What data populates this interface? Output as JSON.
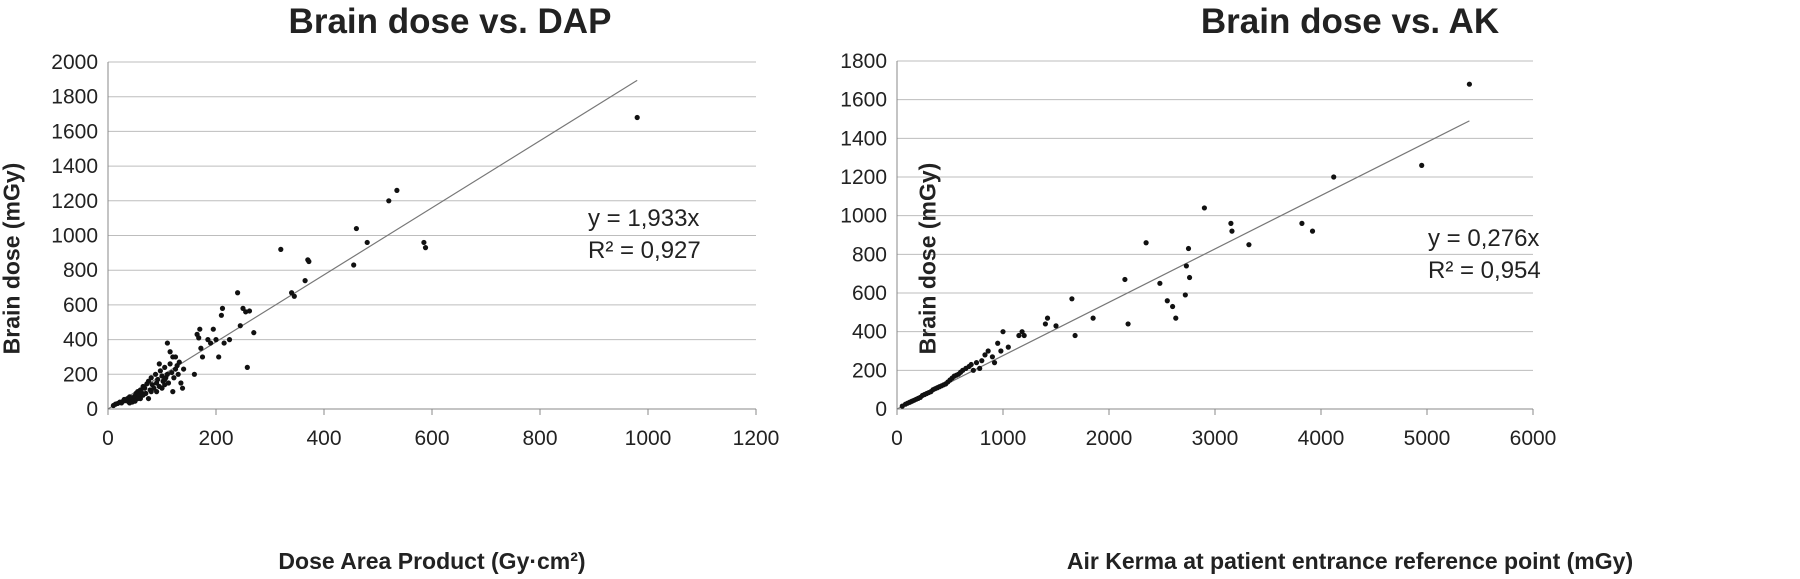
{
  "chart_data": [
    {
      "type": "scatter",
      "title": "Brain dose vs. DAP",
      "xlabel": "Dose Area Product (Gy·cm²)",
      "ylabel": "Brain dose (mGy)",
      "xlim": [
        0,
        1200
      ],
      "ylim": [
        0,
        2000
      ],
      "xticks": [
        "0",
        "200",
        "400",
        "600",
        "800",
        "1000",
        "1200"
      ],
      "yticks": [
        "0",
        "200",
        "400",
        "600",
        "800",
        "1000",
        "1200",
        "1400",
        "1600",
        "1800",
        "2000"
      ],
      "grid": "horizontal",
      "trendline": {
        "slope": 1.933,
        "x_end": 980
      },
      "equation": "y = 1,933x",
      "r_squared": "R² = 0,927",
      "points": [
        [
          10,
          20
        ],
        [
          14,
          28
        ],
        [
          18,
          32
        ],
        [
          22,
          40
        ],
        [
          25,
          35
        ],
        [
          28,
          45
        ],
        [
          30,
          55
        ],
        [
          33,
          48
        ],
        [
          36,
          60
        ],
        [
          38,
          42
        ],
        [
          40,
          70
        ],
        [
          42,
          55
        ],
        [
          45,
          65
        ],
        [
          48,
          50
        ],
        [
          50,
          75
        ],
        [
          52,
          90
        ],
        [
          55,
          100
        ],
        [
          58,
          80
        ],
        [
          60,
          110
        ],
        [
          62,
          95
        ],
        [
          65,
          130
        ],
        [
          68,
          120
        ],
        [
          70,
          90
        ],
        [
          72,
          145
        ],
        [
          75,
          160
        ],
        [
          78,
          110
        ],
        [
          80,
          180
        ],
        [
          82,
          140
        ],
        [
          85,
          120
        ],
        [
          88,
          200
        ],
        [
          90,
          150
        ],
        [
          92,
          170
        ],
        [
          95,
          130
        ],
        [
          97,
          220
        ],
        [
          100,
          190
        ],
        [
          102,
          160
        ],
        [
          105,
          240
        ],
        [
          107,
          180
        ],
        [
          110,
          200
        ],
        [
          112,
          150
        ],
        [
          115,
          260
        ],
        [
          118,
          210
        ],
        [
          120,
          300
        ],
        [
          122,
          180
        ],
        [
          125,
          230
        ],
        [
          128,
          250
        ],
        [
          130,
          200
        ],
        [
          132,
          270
        ],
        [
          135,
          150
        ],
        [
          138,
          120
        ],
        [
          140,
          230
        ],
        [
          95,
          260
        ],
        [
          100,
          120
        ],
        [
          105,
          170
        ],
        [
          110,
          380
        ],
        [
          115,
          330
        ],
        [
          125,
          300
        ],
        [
          120,
          100
        ],
        [
          105,
          140
        ],
        [
          90,
          100
        ],
        [
          80,
          100
        ],
        [
          75,
          60
        ],
        [
          65,
          80
        ],
        [
          60,
          60
        ],
        [
          55,
          60
        ],
        [
          50,
          45
        ],
        [
          45,
          40
        ],
        [
          40,
          35
        ],
        [
          160,
          200
        ],
        [
          165,
          430
        ],
        [
          168,
          410
        ],
        [
          170,
          460
        ],
        [
          172,
          350
        ],
        [
          175,
          300
        ],
        [
          185,
          400
        ],
        [
          190,
          380
        ],
        [
          195,
          460
        ],
        [
          200,
          400
        ],
        [
          205,
          300
        ],
        [
          210,
          540
        ],
        [
          212,
          580
        ],
        [
          215,
          380
        ],
        [
          225,
          400
        ],
        [
          240,
          670
        ],
        [
          245,
          480
        ],
        [
          250,
          580
        ],
        [
          255,
          560
        ],
        [
          258,
          240
        ],
        [
          262,
          565
        ],
        [
          270,
          440
        ],
        [
          320,
          920
        ],
        [
          340,
          670
        ],
        [
          345,
          650
        ],
        [
          365,
          740
        ],
        [
          370,
          860
        ],
        [
          372,
          850
        ],
        [
          455,
          830
        ],
        [
          460,
          1040
        ],
        [
          480,
          960
        ],
        [
          520,
          1200
        ],
        [
          535,
          1260
        ],
        [
          585,
          960
        ],
        [
          588,
          930
        ],
        [
          980,
          1680
        ]
      ]
    },
    {
      "type": "scatter",
      "title": "Brain dose vs. AK",
      "xlabel": "Air Kerma at patient entrance reference point (mGy)",
      "ylabel": "Brain dose (mGy)",
      "xlim": [
        0,
        6000
      ],
      "ylim": [
        0,
        1800
      ],
      "xticks": [
        "0",
        "1000",
        "2000",
        "3000",
        "4000",
        "5000",
        "6000"
      ],
      "yticks": [
        "0",
        "200",
        "400",
        "600",
        "800",
        "1000",
        "1200",
        "1400",
        "1600",
        "1800"
      ],
      "grid": "horizontal",
      "trendline": {
        "slope": 0.276,
        "x_end": 5400
      },
      "equation": "y = 0,276x",
      "r_squared": "R² = 0,954",
      "points": [
        [
          50,
          15
        ],
        [
          80,
          25
        ],
        [
          100,
          30
        ],
        [
          120,
          35
        ],
        [
          140,
          40
        ],
        [
          160,
          45
        ],
        [
          180,
          50
        ],
        [
          200,
          55
        ],
        [
          220,
          60
        ],
        [
          240,
          70
        ],
        [
          260,
          75
        ],
        [
          280,
          80
        ],
        [
          300,
          85
        ],
        [
          320,
          90
        ],
        [
          340,
          100
        ],
        [
          360,
          105
        ],
        [
          380,
          110
        ],
        [
          400,
          115
        ],
        [
          420,
          120
        ],
        [
          440,
          125
        ],
        [
          460,
          130
        ],
        [
          480,
          140
        ],
        [
          500,
          150
        ],
        [
          520,
          160
        ],
        [
          540,
          170
        ],
        [
          560,
          175
        ],
        [
          580,
          180
        ],
        [
          600,
          190
        ],
        [
          620,
          200
        ],
        [
          650,
          210
        ],
        [
          680,
          220
        ],
        [
          700,
          230
        ],
        [
          720,
          200
        ],
        [
          750,
          240
        ],
        [
          780,
          210
        ],
        [
          800,
          250
        ],
        [
          830,
          280
        ],
        [
          860,
          300
        ],
        [
          900,
          270
        ],
        [
          920,
          240
        ],
        [
          950,
          340
        ],
        [
          980,
          300
        ],
        [
          1000,
          400
        ],
        [
          1050,
          320
        ],
        [
          1150,
          380
        ],
        [
          1180,
          400
        ],
        [
          1200,
          380
        ],
        [
          1400,
          440
        ],
        [
          1420,
          470
        ],
        [
          1500,
          430
        ],
        [
          1650,
          570
        ],
        [
          1680,
          380
        ],
        [
          1850,
          470
        ],
        [
          2150,
          670
        ],
        [
          2180,
          440
        ],
        [
          2350,
          860
        ],
        [
          2480,
          650
        ],
        [
          2550,
          560
        ],
        [
          2600,
          530
        ],
        [
          2630,
          470
        ],
        [
          2720,
          590
        ],
        [
          2730,
          740
        ],
        [
          2750,
          830
        ],
        [
          2760,
          680
        ],
        [
          2900,
          1040
        ],
        [
          3150,
          960
        ],
        [
          3160,
          920
        ],
        [
          3320,
          850
        ],
        [
          3820,
          960
        ],
        [
          3920,
          920
        ],
        [
          4120,
          1200
        ],
        [
          4950,
          1260
        ],
        [
          5400,
          1680
        ]
      ]
    }
  ]
}
